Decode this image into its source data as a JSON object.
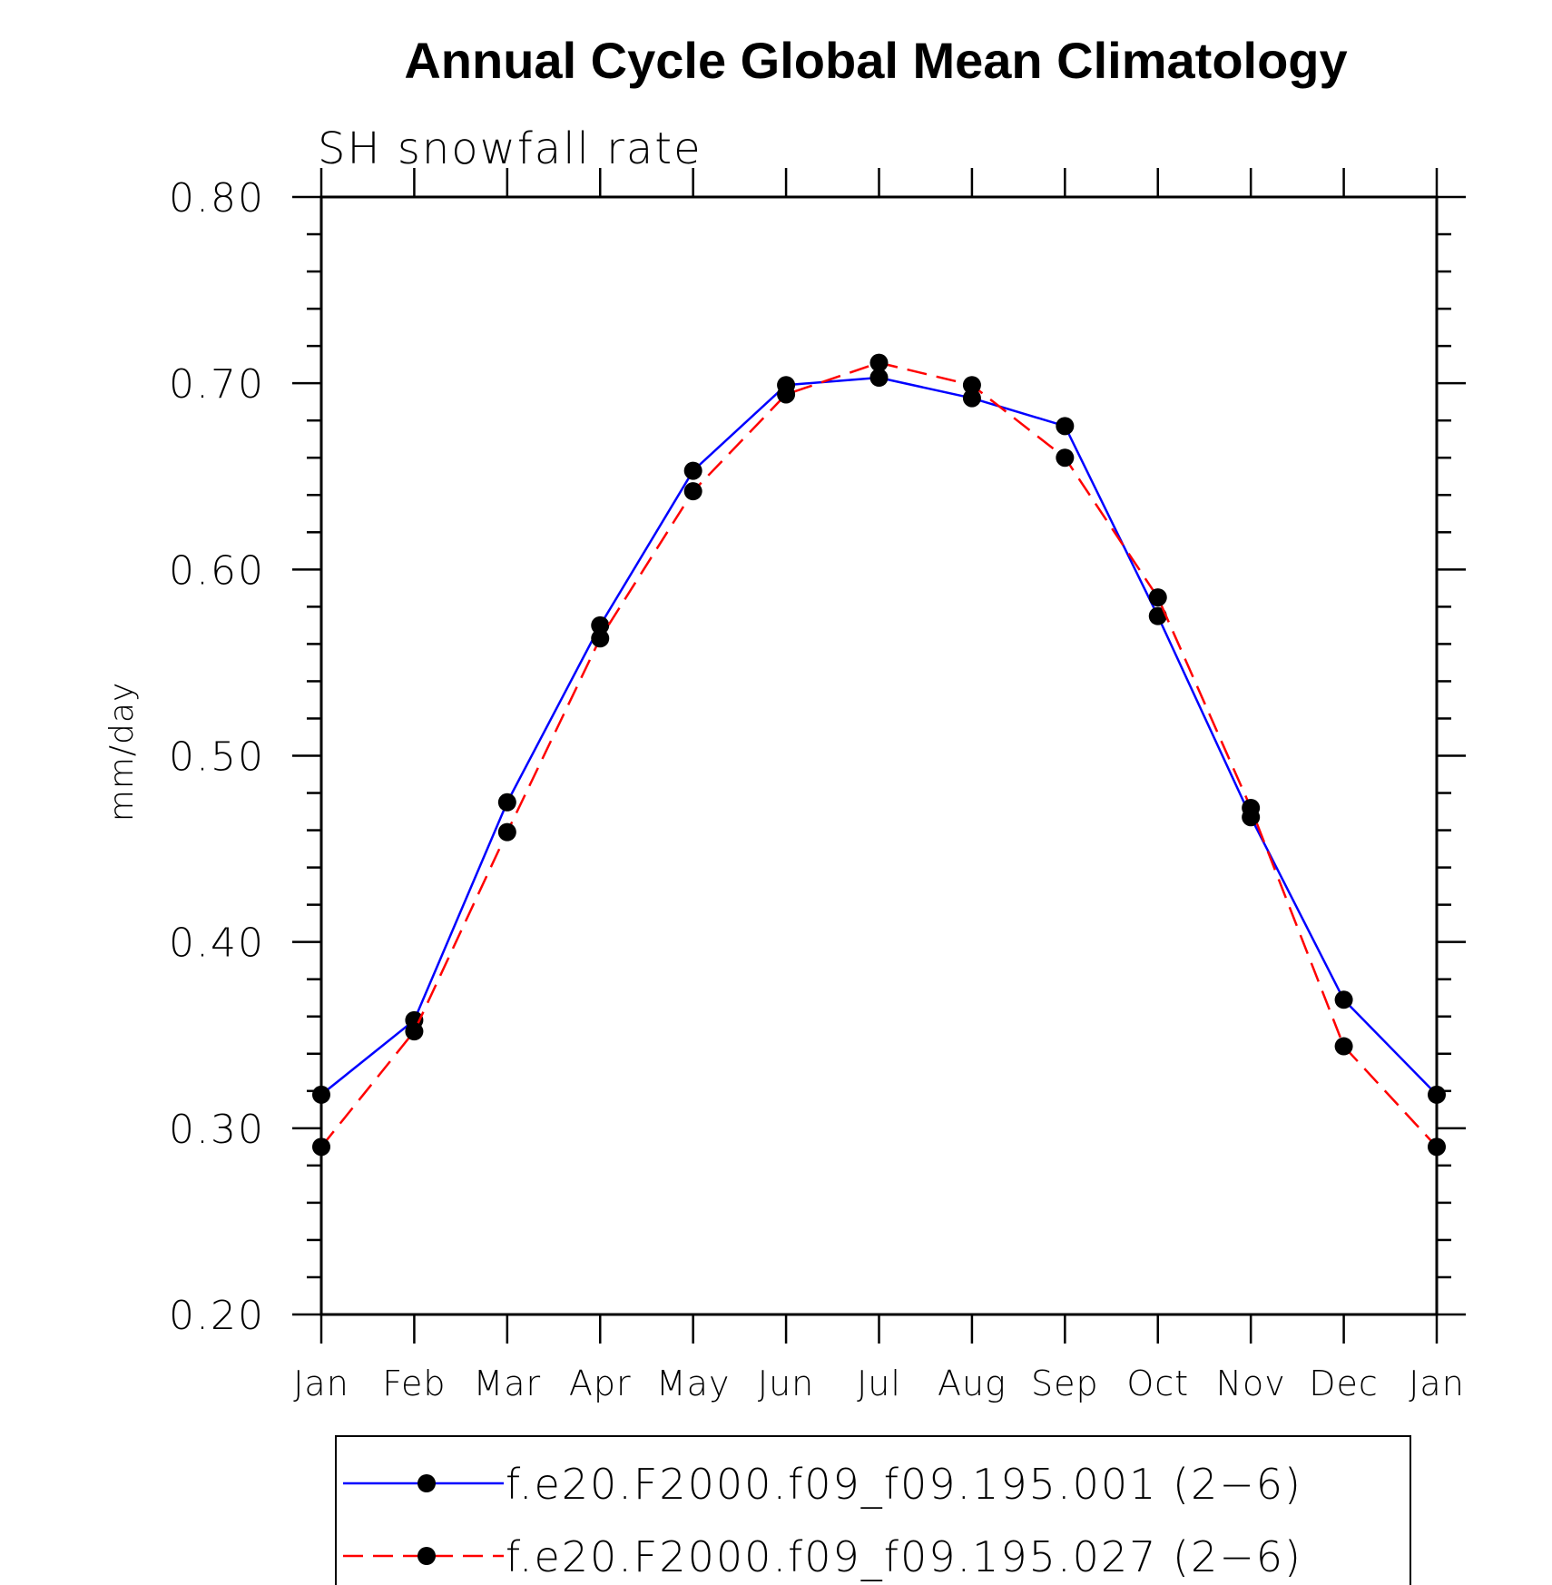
{
  "chart_data": {
    "type": "line",
    "title": "Annual Cycle Global Mean Climatology",
    "subtitle": "SH snowfall rate",
    "xlabel": "",
    "ylabel": "mm/day",
    "categories": [
      "Jan",
      "Feb",
      "Mar",
      "Apr",
      "May",
      "Jun",
      "Jul",
      "Aug",
      "Sep",
      "Oct",
      "Nov",
      "Dec",
      "Jan"
    ],
    "ylim": [
      0.2,
      0.8
    ],
    "yticks": [
      "0.20",
      "0.30",
      "0.40",
      "0.50",
      "0.60",
      "0.70",
      "0.80"
    ],
    "grid": false,
    "legend_position": "bottom",
    "series": [
      {
        "name": "f.e20.F2000.f09_f09.195.001 (2−6)",
        "color": "#0000ff",
        "dash": "solid",
        "marker": "filled-circle",
        "values": [
          0.318,
          0.358,
          0.475,
          0.57,
          0.653,
          0.699,
          0.703,
          0.692,
          0.677,
          0.575,
          0.467,
          0.369,
          0.318
        ]
      },
      {
        "name": "f.e20.F2000.f09_f09.195.027 (2−6)",
        "color": "#ff0000",
        "dash": "dashed",
        "marker": "filled-circle",
        "values": [
          0.29,
          0.352,
          0.459,
          0.563,
          0.642,
          0.694,
          0.711,
          0.699,
          0.66,
          0.585,
          0.472,
          0.344,
          0.29
        ]
      }
    ]
  }
}
